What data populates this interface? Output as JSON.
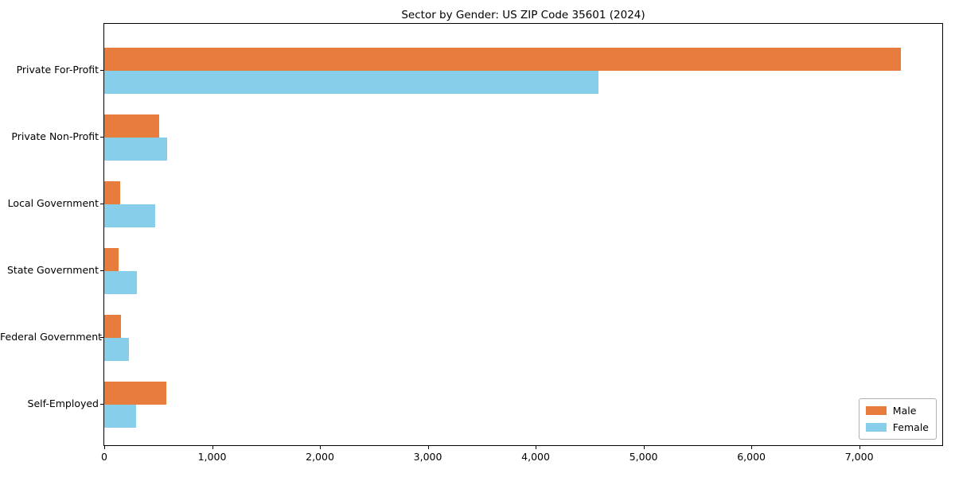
{
  "chart_data": {
    "type": "bar",
    "orientation": "horizontal",
    "title": "Sector by Gender: US ZIP Code 35601 (2024)",
    "categories": [
      "Private For-Profit",
      "Private Non-Profit",
      "Local Government",
      "State Government",
      "Federal Government",
      "Self-Employed"
    ],
    "series": [
      {
        "name": "Male",
        "color": "#e87c3c",
        "values": [
          7390,
          510,
          145,
          135,
          155,
          575
        ]
      },
      {
        "name": "Female",
        "color": "#87ceeb",
        "values": [
          4580,
          580,
          470,
          300,
          230,
          295
        ]
      }
    ],
    "xlabel": "",
    "ylabel": "",
    "xlim": [
      0,
      7770
    ],
    "xticks": [
      0,
      1000,
      2000,
      3000,
      4000,
      5000,
      6000,
      7000
    ],
    "xtick_labels": [
      "0",
      "1,000",
      "2,000",
      "3,000",
      "4,000",
      "5,000",
      "6,000",
      "7,000"
    ],
    "grid": false,
    "legend": {
      "position": "lower-right",
      "labels": [
        "Male",
        "Female"
      ]
    }
  }
}
